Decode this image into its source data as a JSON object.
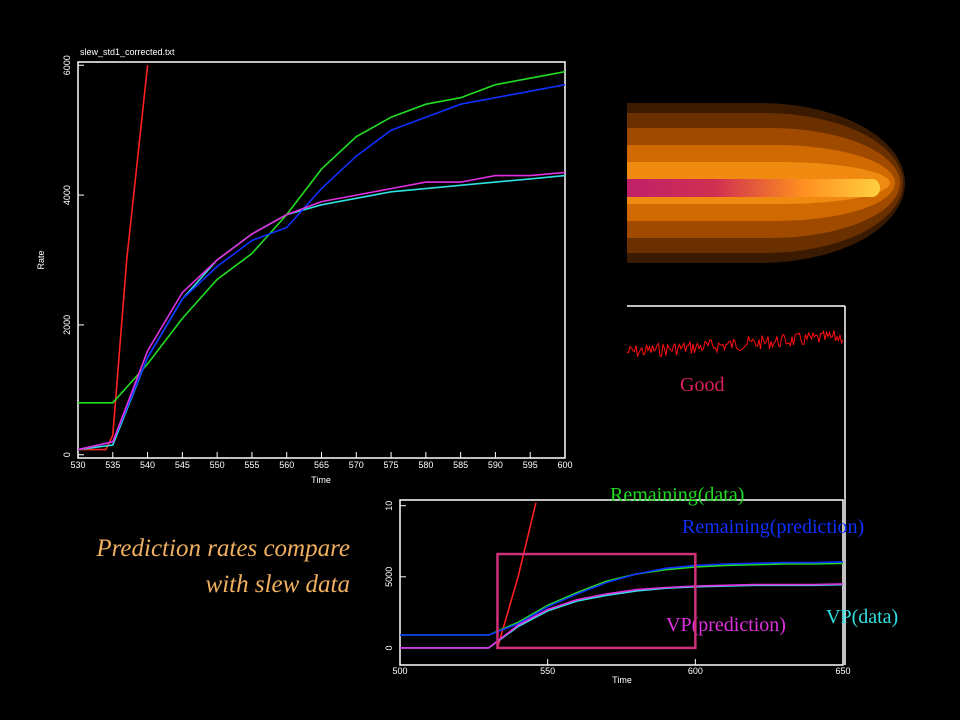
{
  "chart_data": [
    {
      "type": "line",
      "title": "slew_std1_corrected.txt",
      "x_label": "Time",
      "y_label": "Rate",
      "xlim": [
        530,
        600
      ],
      "xticks": [
        530,
        535,
        540,
        545,
        550,
        555,
        560,
        565,
        570,
        575,
        580,
        585,
        590,
        595,
        600
      ],
      "ylim": [
        -50,
        6050
      ],
      "yticks": [
        0,
        2000,
        4000,
        6000
      ],
      "x": [
        530,
        535,
        540,
        545,
        550,
        555,
        560,
        565,
        570,
        575,
        580,
        585,
        590,
        595,
        600
      ],
      "series": [
        {
          "color": "#ff2020",
          "x": [
            530,
            534,
            535,
            537,
            540
          ],
          "values": [
            80,
            80,
            300,
            3000,
            6000
          ]
        },
        {
          "color": "#30e0e0",
          "values": [
            80,
            150,
            1500,
            2400,
            3000,
            3400,
            3700,
            3850,
            3950,
            4050,
            4100,
            4150,
            4200,
            4250,
            4300
          ]
        },
        {
          "color": "#22dd22",
          "values": [
            800,
            800,
            1400,
            2100,
            2700,
            3100,
            3700,
            4400,
            4900,
            5200,
            5400,
            5500,
            5700,
            5800,
            5900
          ]
        },
        {
          "color": "#1030ff",
          "values": [
            80,
            200,
            1500,
            2400,
            2900,
            3300,
            3500,
            4100,
            4600,
            5000,
            5200,
            5400,
            5500,
            5600,
            5700
          ]
        },
        {
          "color": "#e030e0",
          "values": [
            80,
            200,
            1600,
            2500,
            3000,
            3400,
            3700,
            3900,
            4000,
            4100,
            4200,
            4200,
            4300,
            4300,
            4350
          ]
        }
      ]
    },
    {
      "type": "line",
      "x_label": "Time",
      "xlim": [
        500,
        650
      ],
      "xticks": [
        500,
        550,
        600,
        650
      ],
      "ylim": [
        -1200,
        10400
      ],
      "yticks": [
        0,
        5000,
        {
          "value": 10000,
          "label": "10"
        }
      ],
      "x": [
        500,
        510,
        520,
        530,
        540,
        550,
        560,
        570,
        580,
        590,
        600,
        610,
        620,
        630,
        640,
        650
      ],
      "series": [
        {
          "color": "#ff2020",
          "x": [
            533,
            540,
            546
          ],
          "values": [
            0,
            5000,
            10200
          ]
        },
        {
          "name": "VP(data)",
          "color": "#30e0e0",
          "values": [
            0,
            0,
            0,
            0,
            1500,
            2600,
            3300,
            3700,
            4000,
            4200,
            4300,
            4350,
            4400,
            4400,
            4400,
            4450
          ]
        },
        {
          "name": "Remaining(data)",
          "color": "#22dd22",
          "values": [
            900,
            900,
            900,
            900,
            1800,
            3000,
            3900,
            4700,
            5200,
            5500,
            5700,
            5800,
            5850,
            5900,
            5900,
            5950
          ]
        },
        {
          "name": "Remaining(prediction)",
          "color": "#1030ff",
          "values": [
            900,
            900,
            900,
            900,
            1700,
            2900,
            3800,
            4600,
            5200,
            5600,
            5800,
            5900,
            5950,
            6000,
            6000,
            6050
          ]
        },
        {
          "name": "VP(prediction)",
          "color": "#e030e0",
          "values": [
            0,
            0,
            0,
            0,
            1600,
            2700,
            3400,
            3800,
            4100,
            4250,
            4350,
            4400,
            4450,
            4450,
            4450,
            4500
          ]
        }
      ],
      "highlight": {
        "color": "#d0307a",
        "x": [
          533,
          600
        ],
        "y": [
          0,
          6600
        ]
      }
    }
  ],
  "annotations": [
    {
      "text": "Good",
      "color": "#e0205a"
    }
  ],
  "caption": [
    "Prediction rates compare",
    "with slew data"
  ]
}
